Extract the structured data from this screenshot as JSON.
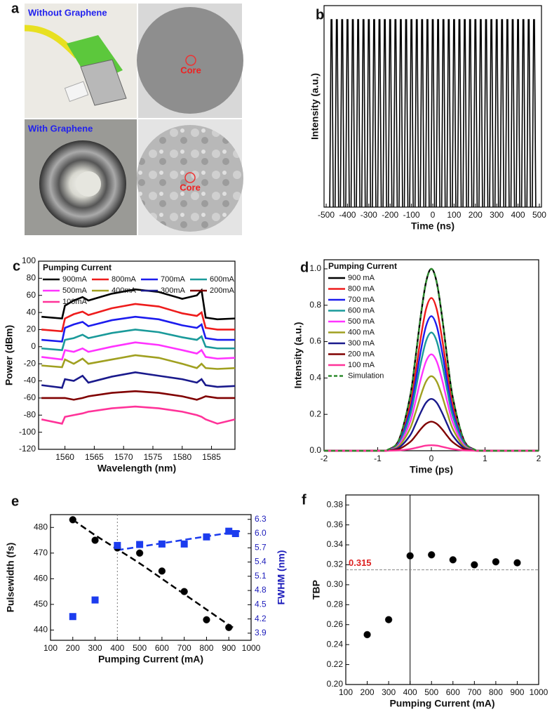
{
  "panel_a": {
    "label": "a",
    "top_caption": "Without Graphene",
    "bottom_caption": "With Graphene",
    "core_labels": [
      "Core",
      "Core"
    ]
  },
  "chart_data": [
    {
      "type": "pulse",
      "label": "b",
      "xlabel": "Time (ns)",
      "ylabel": "Intensity (a.u.)",
      "color": "#000000",
      "x": [
        -475,
        -450,
        -425,
        -400,
        -375,
        -350,
        -325,
        -300,
        -275,
        -250,
        -225,
        -200,
        -175,
        -150,
        -125,
        -100,
        -75,
        -50,
        -25,
        0,
        25,
        50,
        75,
        100,
        125,
        150,
        175,
        200,
        225,
        250,
        275,
        300,
        325,
        350,
        375,
        400,
        425,
        450,
        475
      ],
      "values": [
        0.93,
        0.93,
        0.93,
        0.93,
        0.93,
        0.93,
        0.93,
        0.93,
        0.93,
        0.93,
        0.93,
        0.93,
        0.93,
        0.93,
        0.93,
        0.93,
        0.93,
        0.93,
        0.93,
        0.93,
        0.93,
        0.93,
        0.93,
        0.93,
        0.93,
        0.93,
        0.93,
        0.93,
        0.93,
        0.93,
        0.93,
        0.93,
        0.93,
        0.93,
        0.93,
        0.93,
        0.93,
        0.93,
        0.93
      ],
      "xlim": [
        -510,
        510
      ],
      "xticks": [
        -500,
        -400,
        -300,
        -200,
        -100,
        0,
        100,
        200,
        300,
        400,
        500
      ],
      "ylim": [
        0,
        1
      ]
    },
    {
      "type": "line",
      "label": "c",
      "xlabel": "Wavelength (nm)",
      "ylabel": "Power (dBm)",
      "legend_title": "Pumping Current",
      "x": [
        1556,
        1559.5,
        1560,
        1561.5,
        1563,
        1564,
        1568,
        1572,
        1576,
        1580,
        1582.5,
        1583.3,
        1584,
        1586,
        1589
      ],
      "series": [
        {
          "name": "900mA",
          "color": "#000000",
          "values": [
            35,
            33,
            48,
            54,
            58,
            54,
            62,
            67,
            64,
            56,
            60,
            66,
            34,
            32,
            33
          ]
        },
        {
          "name": "800mA",
          "color": "#ee1c1c",
          "values": [
            20,
            18,
            33,
            38,
            41,
            37,
            45,
            50,
            47,
            39,
            36,
            40,
            22,
            20,
            20
          ]
        },
        {
          "name": "700mA",
          "color": "#1c1cee",
          "values": [
            8,
            6,
            22,
            26,
            29,
            24,
            31,
            35,
            32,
            25,
            22,
            26,
            10,
            8,
            8
          ]
        },
        {
          "name": "600mA",
          "color": "#1a9a9a",
          "values": [
            -2,
            -4,
            8,
            10,
            14,
            10,
            16,
            20,
            17,
            11,
            8,
            12,
            0,
            -2,
            -2
          ]
        },
        {
          "name": "500mA",
          "color": "#ff33ff",
          "values": [
            -12,
            -15,
            -4,
            -6,
            -2,
            -6,
            0,
            5,
            2,
            -4,
            -8,
            -4,
            -12,
            -14,
            -13
          ]
        },
        {
          "name": "400mA",
          "color": "#a0a020",
          "values": [
            -22,
            -24,
            -15,
            -20,
            -14,
            -20,
            -15,
            -10,
            -13,
            -20,
            -25,
            -20,
            -25,
            -26,
            -25
          ]
        },
        {
          "name": "300mA",
          "color": "#1a1a8c",
          "values": [
            -45,
            -48,
            -38,
            -40,
            -34,
            -42,
            -35,
            -30,
            -34,
            -38,
            -42,
            -38,
            -45,
            -47,
            -46
          ]
        },
        {
          "name": "200mA",
          "color": "#800000",
          "values": [
            -60,
            -60,
            -60,
            -62,
            -60,
            -58,
            -54,
            -52,
            -54,
            -58,
            -62,
            -60,
            -58,
            -60,
            -60
          ]
        },
        {
          "name": "100mA",
          "color": "#ff3399",
          "values": [
            -85,
            -90,
            -82,
            -80,
            -78,
            -76,
            -72,
            -70,
            -72,
            -76,
            -80,
            -82,
            -85,
            -90,
            -85
          ]
        }
      ],
      "xlim": [
        1555.5,
        1589
      ],
      "xticks": [
        1560,
        1565,
        1570,
        1575,
        1580,
        1585
      ],
      "ylim": [
        -120,
        100
      ],
      "yticks": [
        -120,
        -100,
        -80,
        -60,
        -40,
        -20,
        0,
        20,
        40,
        60,
        80,
        100
      ]
    },
    {
      "type": "line",
      "smooth": true,
      "label": "d",
      "xlabel": "Time (ps)",
      "ylabel": "Intensity (a.u.)",
      "legend_title": "Pumping Current",
      "x": [
        -2,
        -1,
        -0.8,
        -0.6,
        -0.4,
        -0.3,
        -0.2,
        -0.1,
        0,
        0.1,
        0.2,
        0.3,
        0.4,
        0.6,
        0.8,
        1,
        2
      ],
      "series": [
        {
          "name": "900 mA",
          "color": "#000000",
          "values": [
            0,
            0,
            0.007,
            0.063,
            0.292,
            0.5,
            0.735,
            0.926,
            1,
            0.926,
            0.735,
            0.5,
            0.292,
            0.063,
            0.007,
            0,
            0
          ]
        },
        {
          "name": "800 mA",
          "color": "#ee1c1c",
          "values": [
            0,
            0,
            0.006,
            0.053,
            0.245,
            0.42,
            0.617,
            0.778,
            0.84,
            0.778,
            0.617,
            0.42,
            0.245,
            0.053,
            0.006,
            0,
            0
          ]
        },
        {
          "name": "700 mA",
          "color": "#1c1cee",
          "values": [
            0,
            0,
            0.005,
            0.047,
            0.216,
            0.37,
            0.544,
            0.685,
            0.74,
            0.685,
            0.544,
            0.37,
            0.216,
            0.047,
            0.005,
            0,
            0
          ]
        },
        {
          "name": "600 mA",
          "color": "#1a9a9a",
          "values": [
            0,
            0,
            0.005,
            0.041,
            0.19,
            0.325,
            0.478,
            0.602,
            0.65,
            0.602,
            0.478,
            0.325,
            0.19,
            0.041,
            0.005,
            0,
            0
          ]
        },
        {
          "name": "500 mA",
          "color": "#ff33ff",
          "values": [
            0,
            0,
            0.004,
            0.033,
            0.155,
            0.265,
            0.39,
            0.491,
            0.53,
            0.491,
            0.39,
            0.265,
            0.155,
            0.033,
            0.004,
            0,
            0
          ]
        },
        {
          "name": "400 mA",
          "color": "#a0a020",
          "values": [
            0,
            0,
            0.003,
            0.026,
            0.12,
            0.205,
            0.301,
            0.38,
            0.41,
            0.38,
            0.301,
            0.205,
            0.12,
            0.026,
            0.003,
            0,
            0
          ]
        },
        {
          "name": "300 mA",
          "color": "#1a1a8c",
          "values": [
            0,
            0,
            0.002,
            0.018,
            0.083,
            0.143,
            0.209,
            0.264,
            0.285,
            0.264,
            0.209,
            0.143,
            0.083,
            0.018,
            0.002,
            0,
            0
          ]
        },
        {
          "name": "200 mA",
          "color": "#800000",
          "values": [
            0,
            0,
            0.001,
            0.01,
            0.047,
            0.08,
            0.118,
            0.148,
            0.16,
            0.148,
            0.118,
            0.08,
            0.047,
            0.01,
            0.001,
            0,
            0
          ]
        },
        {
          "name": "100 mA",
          "color": "#ff3399",
          "values": [
            0,
            0,
            0,
            0.002,
            0.009,
            0.015,
            0.022,
            0.028,
            0.03,
            0.028,
            0.022,
            0.015,
            0.009,
            0.002,
            0,
            0,
            0
          ]
        },
        {
          "name": "Simulation",
          "color": "#2e8b2e",
          "dash": true,
          "values": [
            0,
            0,
            0.007,
            0.063,
            0.292,
            0.5,
            0.735,
            0.926,
            1,
            0.926,
            0.735,
            0.5,
            0.292,
            0.063,
            0.007,
            0,
            0
          ]
        }
      ],
      "xlim": [
        -2,
        2
      ],
      "xticks": [
        -2,
        -1,
        0,
        1,
        2
      ],
      "ylim": [
        0,
        1.05
      ],
      "yticks": [
        {
          "value": 0,
          "label": "0.0"
        },
        0.2,
        0.4,
        0.6,
        0.8,
        {
          "value": 1,
          "label": "1.0"
        }
      ]
    },
    {
      "type": "scatter",
      "label": "e",
      "xlabel": "Pumping Current (mA)",
      "ylabel": "Pulsewidth (fs)",
      "y2label": "FWHM (nm)",
      "y2color": "#1c1cbb",
      "series": [
        {
          "color": "#000000",
          "marker": "circle",
          "x": [
            200,
            300,
            400,
            500,
            600,
            700,
            800,
            900
          ],
          "values": [
            483,
            475,
            472,
            470,
            463,
            455,
            444,
            441
          ]
        },
        {
          "color": "#1c3cee",
          "marker": "square",
          "axis": "y2",
          "x": [
            200,
            300,
            400,
            500,
            600,
            700,
            800,
            900,
            930
          ],
          "values": [
            4.25,
            4.6,
            5.75,
            5.77,
            5.78,
            5.78,
            5.93,
            6.05,
            6.0
          ]
        }
      ],
      "fits": [
        {
          "color": "#000000",
          "x": [
            200,
            300,
            400,
            500,
            600,
            700,
            800,
            900,
            930
          ],
          "values": [
            483,
            477,
            471.5,
            466,
            460,
            454,
            448,
            442,
            440.5
          ]
        },
        {
          "color": "#1c3cee",
          "axis": "y2",
          "x": [
            400,
            950
          ],
          "values": [
            5.65,
            6.05
          ]
        }
      ],
      "vline": 400,
      "vline_style": "dotted",
      "xlim": [
        100,
        1000
      ],
      "xticks": [
        100,
        200,
        300,
        400,
        500,
        600,
        700,
        800,
        900,
        1000
      ],
      "ylim": [
        436,
        485
      ],
      "yticks": [
        440,
        450,
        460,
        470,
        480
      ],
      "y2lim": [
        3.75,
        6.4
      ],
      "y2ticks": [
        3.9,
        4.2,
        4.5,
        4.8,
        5.1,
        5.4,
        5.7,
        {
          "value": 6,
          "label": "6.0"
        },
        6.3
      ]
    },
    {
      "type": "scatter",
      "label": "f",
      "xlabel": "Pumping Current (mA)",
      "ylabel": "TBP",
      "series": [
        {
          "color": "#000000",
          "marker": "circle",
          "x": [
            200,
            300,
            400,
            500,
            600,
            700,
            800,
            900
          ],
          "values": [
            0.25,
            0.265,
            0.329,
            0.33,
            0.325,
            0.32,
            0.323,
            0.322
          ]
        }
      ],
      "vline": 400,
      "vline_style": "solid",
      "hline": 0.315,
      "hline_color": "#dd2222",
      "xlim": [
        100,
        1000
      ],
      "xticks": [
        100,
        200,
        300,
        400,
        500,
        600,
        700,
        800,
        900,
        1000
      ],
      "ylim": [
        0.2,
        0.39
      ],
      "yticks": [
        {
          "value": 0.2,
          "label": "0.20"
        },
        0.22,
        0.24,
        0.26,
        0.28,
        {
          "value": 0.3,
          "label": "0.30"
        },
        0.32,
        0.34,
        0.36,
        0.38
      ]
    }
  ]
}
